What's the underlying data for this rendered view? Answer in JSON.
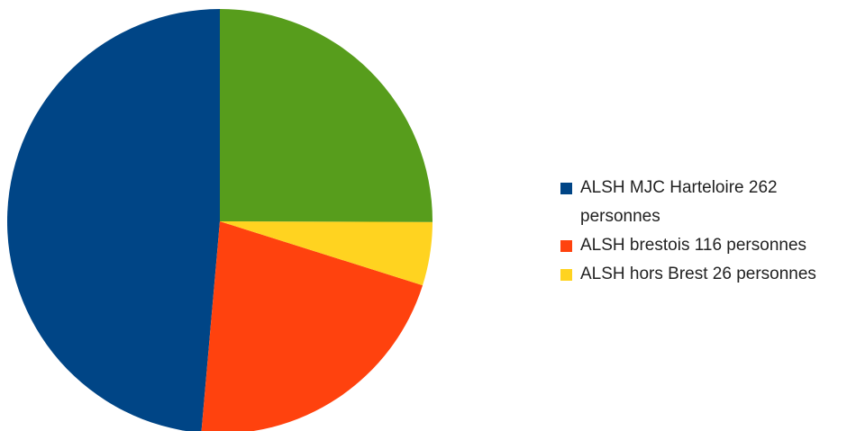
{
  "chart_data": {
    "type": "pie",
    "categories": [
      "ALSH MJC Harteloire 262 personnes",
      "ALSH brestois 116 personnes",
      "ALSH hors Brest 26 personnes",
      null
    ],
    "values": [
      262,
      116,
      26,
      135
    ],
    "colors": [
      "#004586",
      "#ff420e",
      "#ffd320",
      "#579d1c"
    ],
    "start_angle": 90,
    "direction": "counterclockwise",
    "legend": "right"
  }
}
